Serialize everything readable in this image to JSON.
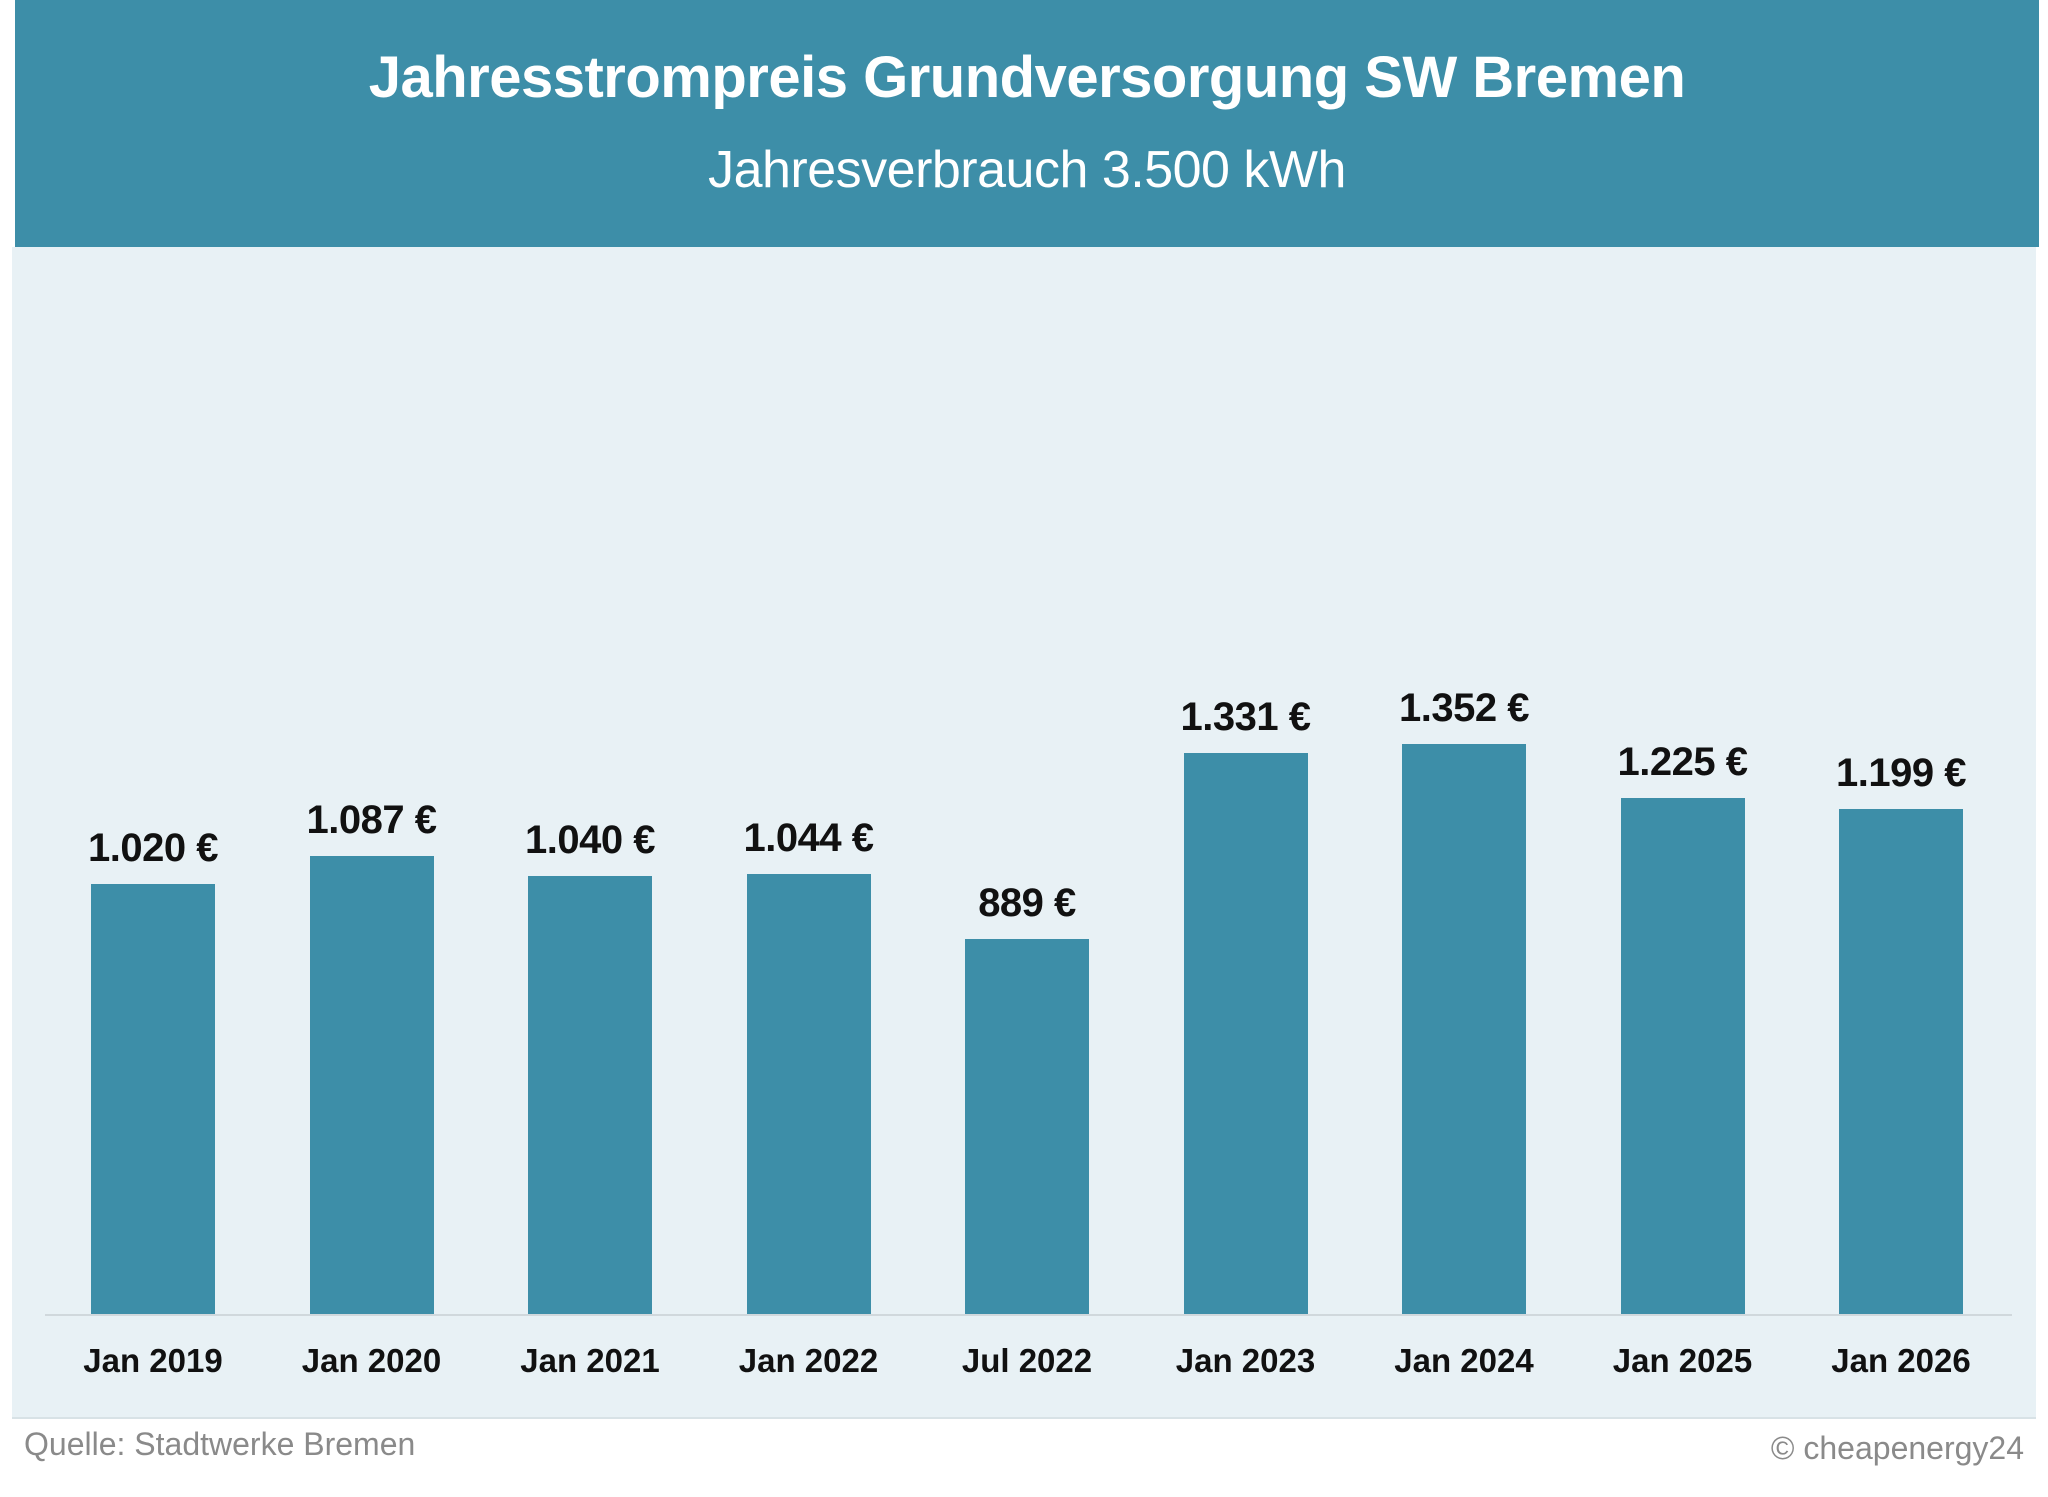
{
  "header": {
    "title": "Jahresstrompreis Grundversorgung SW Bremen",
    "subtitle": "Jahresverbrauch 3.500 kWh"
  },
  "footer": {
    "source": "Quelle: Stadtwerke Bremen",
    "credit": "© cheapenergy24"
  },
  "colors": {
    "header_bg": "#3d8ea8",
    "bar": "#3d8ea8",
    "panel_bg": "#e8f1f5",
    "label_text": "#111111",
    "footer_text": "#8a8a8a"
  },
  "chart_data": {
    "type": "bar",
    "title": "Jahresstrompreis Grundversorgung SW Bremen",
    "subtitle": "Jahresverbrauch 3.500 kWh",
    "xlabel": "",
    "ylabel": "",
    "unit": "€",
    "categories": [
      "Jan 2019",
      "Jan 2020",
      "Jan 2021",
      "Jan 2022",
      "Jul 2022",
      "Jan 2023",
      "Jan 2024",
      "Jan 2025",
      "Jan 2026"
    ],
    "values": [
      1020,
      1087,
      1040,
      1044,
      889,
      1331,
      1352,
      1225,
      1199
    ],
    "value_labels": [
      "1.020 €",
      "1.087 €",
      "1.040 €",
      "1.044 €",
      "889 €",
      "1.331 €",
      "1.352 €",
      "1.225 €",
      "1.199 €"
    ],
    "ylim": [
      0,
      1400
    ],
    "grid": false,
    "legend": "none",
    "source": "Quelle: Stadtwerke Bremen"
  }
}
